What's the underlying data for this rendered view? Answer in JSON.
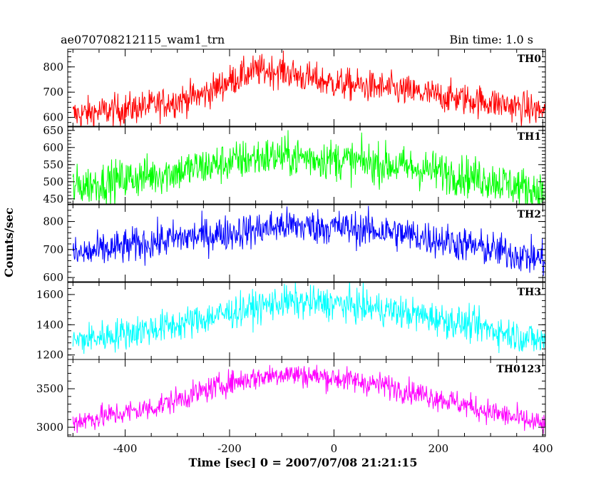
{
  "header": {
    "left": "ae070708212115_wam1_trn",
    "right": "Bin time: 1.0 s"
  },
  "chart_data": {
    "type": "line",
    "xlabel": "Time [sec] 0 = 2007/07/08 21:21:15",
    "ylabel": "Counts/sec",
    "xlim": [
      -510,
      405
    ],
    "xticks": [
      -400,
      -200,
      0,
      200,
      400
    ],
    "bin_time_s": 1.0,
    "series": [
      {
        "name": "TH0",
        "color": "#ff0000",
        "ylim": [
          565,
          870
        ],
        "yticks": [
          600,
          700,
          800
        ],
        "trend": [
          [
            -500,
            610
          ],
          [
            -350,
            645
          ],
          [
            -250,
            690
          ],
          [
            -200,
            745
          ],
          [
            -150,
            785
          ],
          [
            -100,
            785
          ],
          [
            -60,
            760
          ],
          [
            0,
            735
          ],
          [
            100,
            715
          ],
          [
            200,
            685
          ],
          [
            300,
            660
          ],
          [
            400,
            625
          ]
        ],
        "noise": 32
      },
      {
        "name": "TH1",
        "color": "#00ff00",
        "ylim": [
          435,
          660
        ],
        "yticks": [
          450,
          500,
          550,
          600,
          650
        ],
        "trend": [
          [
            -500,
            485
          ],
          [
            -300,
            530
          ],
          [
            -150,
            570
          ],
          [
            -100,
            575
          ],
          [
            0,
            565
          ],
          [
            100,
            550
          ],
          [
            200,
            530
          ],
          [
            300,
            505
          ],
          [
            400,
            470
          ]
        ],
        "noise": 30
      },
      {
        "name": "TH2",
        "color": "#0000ff",
        "ylim": [
          585,
          860
        ],
        "yticks": [
          600,
          700,
          800
        ],
        "trend": [
          [
            -500,
            680
          ],
          [
            -300,
            740
          ],
          [
            -150,
            770
          ],
          [
            -100,
            785
          ],
          [
            0,
            780
          ],
          [
            100,
            765
          ],
          [
            200,
            735
          ],
          [
            300,
            700
          ],
          [
            400,
            665
          ]
        ],
        "noise": 32
      },
      {
        "name": "TH3",
        "color": "#00ffff",
        "ylim": [
          1170,
          1680
        ],
        "yticks": [
          1200,
          1400,
          1600
        ],
        "trend": [
          [
            -500,
            1290
          ],
          [
            -300,
            1400
          ],
          [
            -200,
            1480
          ],
          [
            -100,
            1550
          ],
          [
            0,
            1540
          ],
          [
            100,
            1500
          ],
          [
            200,
            1440
          ],
          [
            300,
            1370
          ],
          [
            400,
            1290
          ]
        ],
        "noise": 55
      },
      {
        "name": "TH0123",
        "color": "#ff00ff",
        "ylim": [
          2880,
          3880
        ],
        "yticks": [
          3000,
          3500
        ],
        "trend": [
          [
            -500,
            3070
          ],
          [
            -350,
            3250
          ],
          [
            -250,
            3470
          ],
          [
            -200,
            3580
          ],
          [
            -100,
            3700
          ],
          [
            0,
            3640
          ],
          [
            100,
            3540
          ],
          [
            200,
            3380
          ],
          [
            300,
            3200
          ],
          [
            400,
            3030
          ]
        ],
        "noise": 80
      }
    ]
  }
}
